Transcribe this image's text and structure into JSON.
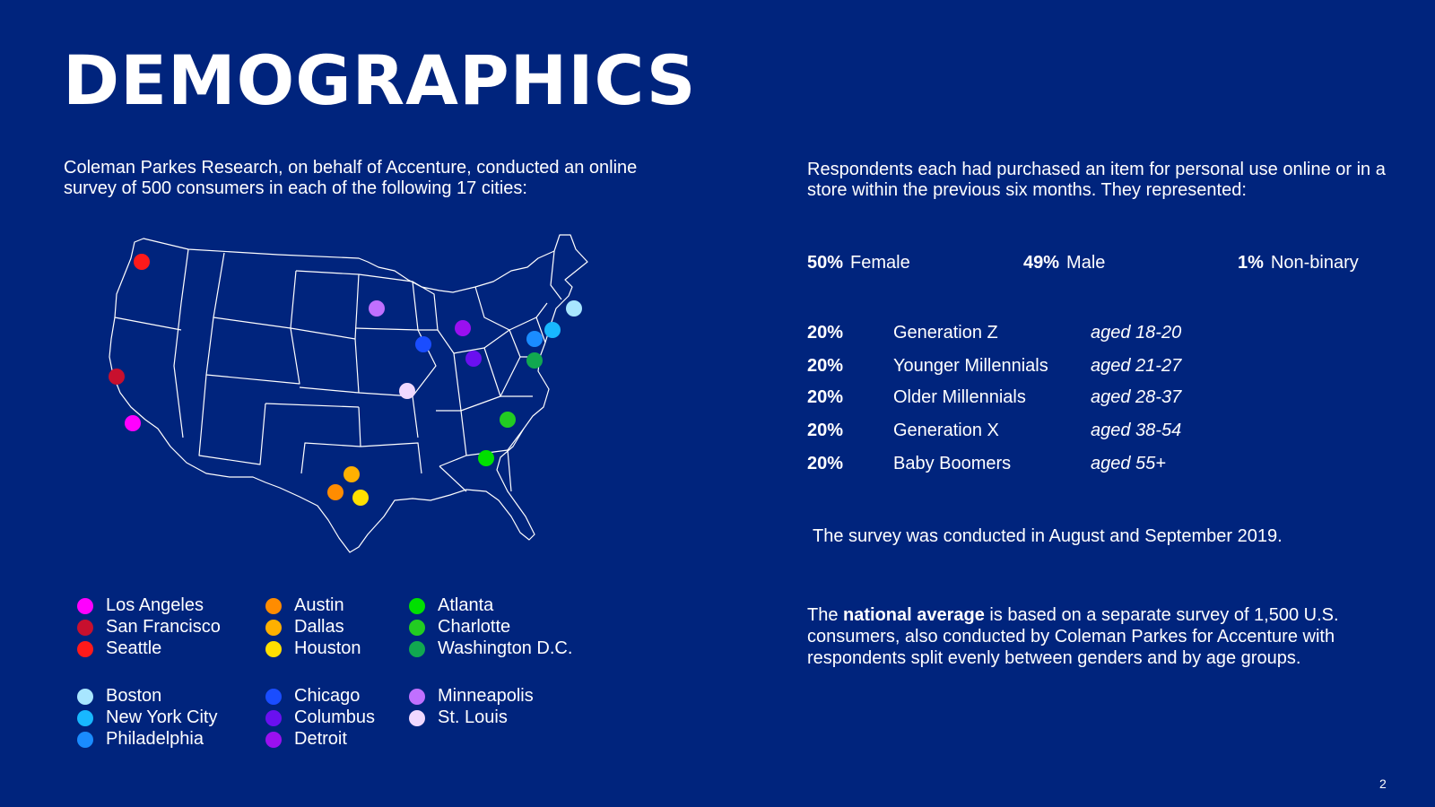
{
  "title": "DEMOGRAPHICS",
  "intro": "Coleman Parkes Research, on behalf of Accenture, conducted an online survey of 500 consumers in each of the following 17 cities:",
  "respondents_intro": "Respondents each had purchased an item for personal use online or in a store within the previous six months. They represented:",
  "gender": [
    {
      "pct": "50%",
      "label": "Female"
    },
    {
      "pct": "49%",
      "label": "Male"
    },
    {
      "pct": "1%",
      "label": "Non-binary"
    }
  ],
  "age_groups": [
    {
      "pct": "20%",
      "generation": "Generation Z",
      "range": "aged 18-20"
    },
    {
      "pct": "20%",
      "generation": "Younger Millennials",
      "range": "aged 21-27"
    },
    {
      "pct": "20%",
      "generation": "Older Millennials",
      "range": "aged 28-37"
    },
    {
      "pct": "20%",
      "generation": "Generation X",
      "range": "aged 38-54"
    },
    {
      "pct": "20%",
      "generation": "Baby Boomers",
      "range": "aged 55+"
    }
  ],
  "conducted": "The survey was conducted in August and September 2019.",
  "national": {
    "pre": "The ",
    "bold": "national average",
    "post": " is based on a separate survey of 1,500 U.S. consumers, also conducted by Coleman Parkes for Accenture with respondents split evenly between genders and by age groups."
  },
  "page_number": "2",
  "cities": [
    {
      "name": "Los Angeles",
      "color": "#ff00ff"
    },
    {
      "name": "San Francisco",
      "color": "#c8102e"
    },
    {
      "name": "Seattle",
      "color": "#ff1a1a"
    },
    {
      "name": "Austin",
      "color": "#ff8c00"
    },
    {
      "name": "Dallas",
      "color": "#ffb000"
    },
    {
      "name": "Houston",
      "color": "#ffe000"
    },
    {
      "name": "Atlanta",
      "color": "#00e000"
    },
    {
      "name": "Charlotte",
      "color": "#22cc22"
    },
    {
      "name": "Washington D.C.",
      "color": "#11a850"
    },
    {
      "name": "Boston",
      "color": "#a8e6ff"
    },
    {
      "name": "New York City",
      "color": "#18b8ff"
    },
    {
      "name": "Philadelphia",
      "color": "#1a8cff"
    },
    {
      "name": "Chicago",
      "color": "#1a4dff"
    },
    {
      "name": "Columbus",
      "color": "#6a10f0"
    },
    {
      "name": "Detroit",
      "color": "#9a10f0"
    },
    {
      "name": "Minneapolis",
      "color": "#c070ff"
    },
    {
      "name": "St. Louis",
      "color": "#f0d8ff"
    }
  ]
}
